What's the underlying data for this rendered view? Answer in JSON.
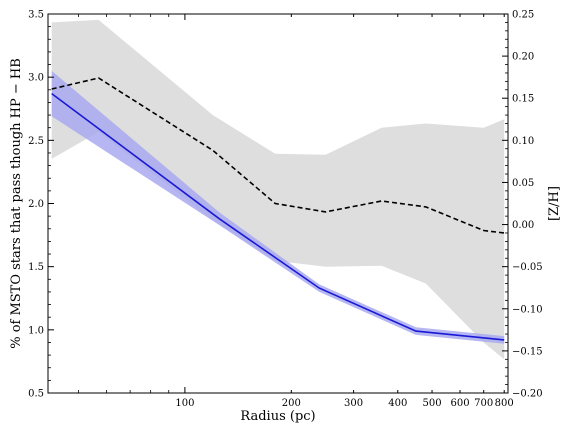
{
  "chart_data": {
    "type": "line",
    "title": "",
    "xlabel": "Radius (pc)",
    "ylabel": "% of MSTO stars that pass though HP − HB",
    "y2label": "[Z/H]",
    "xscale": "log",
    "xlim": [
      41,
      820
    ],
    "ylim": [
      0.5,
      3.5
    ],
    "y2lim": [
      -0.2,
      0.25
    ],
    "xticks": [
      100,
      200,
      300,
      400,
      500,
      600,
      700,
      800
    ],
    "xticklabels": [
      "100",
      "200",
      "300",
      "400",
      "500",
      "600",
      "700",
      "800"
    ],
    "yticks": [
      "0.5",
      "1.0",
      "1.5",
      "2.0",
      "2.5",
      "3.0",
      "3.5"
    ],
    "y2ticks": [
      "−0.20",
      "−0.15",
      "−0.10",
      "−0.05",
      "0.00",
      "0.05",
      "0.10",
      "0.15",
      "0.20",
      "0.25"
    ],
    "grid": false,
    "colors": {
      "blue_line": "#1a1ad6",
      "blue_band": "#a9a9f0",
      "gray_band": "#dedede",
      "dashed_line": "#000000"
    },
    "series": [
      {
        "axis": "left",
        "style": "solid-blue",
        "x": [
          42,
          125,
          240,
          450,
          800
        ],
        "y": [
          2.87,
          1.88,
          1.33,
          0.99,
          0.92
        ],
        "band_upper": [
          3.05,
          1.93,
          1.36,
          1.02,
          0.95
        ],
        "band_lower": [
          2.69,
          1.83,
          1.3,
          0.96,
          0.89
        ]
      },
      {
        "axis": "right",
        "style": "dashed-black",
        "x": [
          42,
          57,
          120,
          180,
          250,
          360,
          480,
          700,
          800
        ],
        "y": [
          0.161,
          0.174,
          0.088,
          0.025,
          0.015,
          0.028,
          0.021,
          -0.007,
          -0.01
        ],
        "band_upper": [
          0.24,
          0.243,
          0.13,
          0.084,
          0.083,
          0.115,
          0.12,
          0.115,
          0.125
        ],
        "band_lower": [
          0.078,
          0.11,
          0.005,
          -0.043,
          -0.05,
          -0.049,
          -0.07,
          -0.14,
          -0.16
        ]
      }
    ]
  }
}
